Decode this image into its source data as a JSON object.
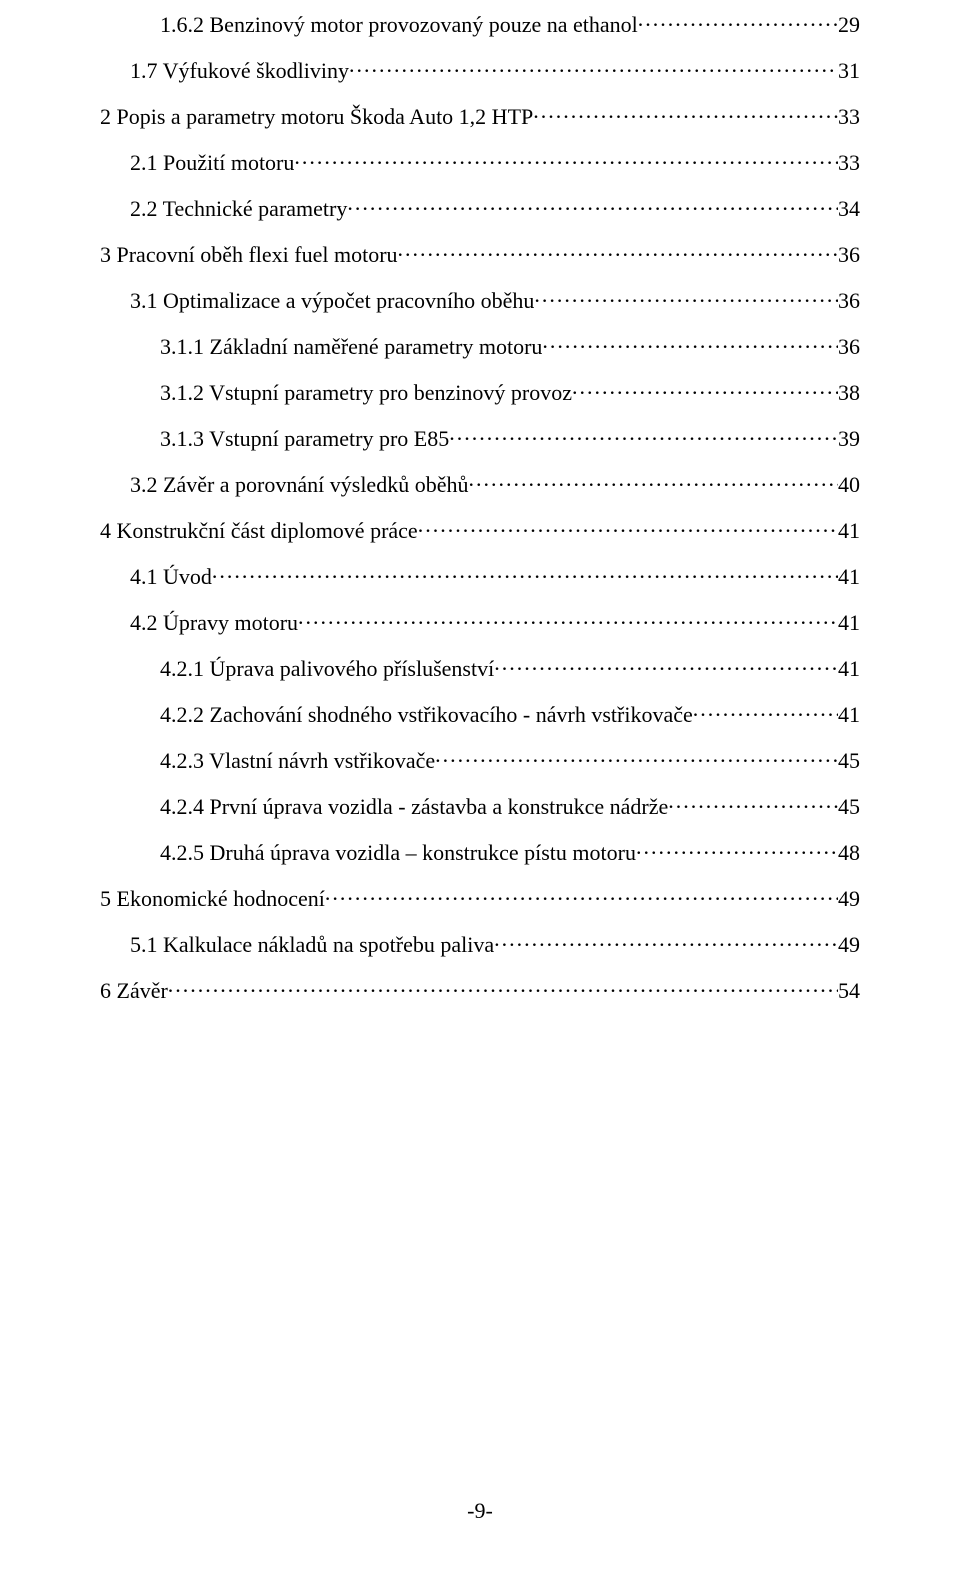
{
  "toc": {
    "font_family": "Times New Roman",
    "font_size_pt": 12,
    "text_color": "#000000",
    "background_color": "#ffffff",
    "entries": [
      {
        "indent": 2,
        "label": "1.6.2 Benzinový motor provozovaný pouze na ethanol",
        "page": "29"
      },
      {
        "indent": 1,
        "label": "1.7 Výfukové škodliviny",
        "page": "31"
      },
      {
        "indent": 0,
        "label": "2 Popis a parametry motoru Škoda Auto 1,2 HTP",
        "page": "33"
      },
      {
        "indent": 1,
        "label": "2.1 Použití motoru",
        "page": "33"
      },
      {
        "indent": 1,
        "label": "2.2 Technické parametry",
        "page": "34"
      },
      {
        "indent": 0,
        "label": "3 Pracovní oběh flexi fuel motoru",
        "page": "36"
      },
      {
        "indent": 1,
        "label": "3.1 Optimalizace a výpočet pracovního oběhu",
        "page": "36"
      },
      {
        "indent": 2,
        "label": "3.1.1 Základní naměřené parametry motoru",
        "page": "36"
      },
      {
        "indent": 2,
        "label": "3.1.2 Vstupní parametry pro benzinový provoz",
        "page": "38"
      },
      {
        "indent": 2,
        "label": "3.1.3 Vstupní parametry pro E85",
        "page": "39"
      },
      {
        "indent": 1,
        "label": "3.2 Závěr a porovnání výsledků oběhů",
        "page": "40"
      },
      {
        "indent": 0,
        "label": "4 Konstrukční část diplomové práce",
        "page": "41"
      },
      {
        "indent": 1,
        "label": "4.1 Úvod",
        "page": "41"
      },
      {
        "indent": 1,
        "label": "4.2 Úpravy motoru",
        "page": "41"
      },
      {
        "indent": 2,
        "label": "4.2.1 Úprava palivového příslušenství",
        "page": "41"
      },
      {
        "indent": 2,
        "label": "4.2.2 Zachování shodného vstřikovacího - návrh vstřikovače",
        "page": "41"
      },
      {
        "indent": 2,
        "label": "4.2.3 Vlastní návrh vstřikovače",
        "page": "45"
      },
      {
        "indent": 2,
        "label": "4.2.4 První úprava vozidla - zástavba a konstrukce nádrže",
        "page": "45"
      },
      {
        "indent": 2,
        "label": "4.2.5 Druhá úprava vozidla – konstrukce pístu motoru",
        "page": "48"
      },
      {
        "indent": 0,
        "label": "5 Ekonomické hodnocení",
        "page": "49"
      },
      {
        "indent": 1,
        "label": "5.1 Kalkulace nákladů na spotřebu paliva",
        "page": "49"
      },
      {
        "indent": 0,
        "label": "6 Závěr",
        "page": "54"
      }
    ]
  },
  "page_number": "-9-"
}
